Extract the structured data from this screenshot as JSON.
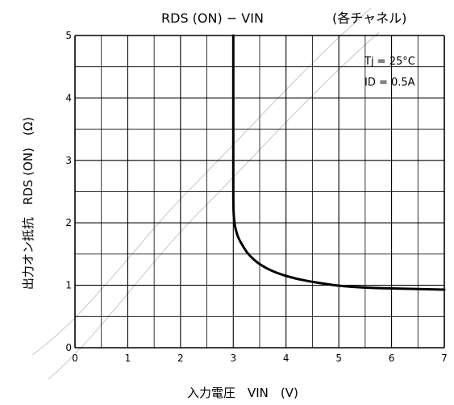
{
  "chart_data": {
    "type": "line",
    "title": "RDS (ON)  −  VIN",
    "subtitle": "(各チャネル)",
    "conditions": [
      "Tj = 25°C",
      "ID = 0.5A"
    ],
    "xlabel": "入力電圧　VIN　(V)",
    "ylabel": "出力オン抵抗　RDS (ON)　(Ω)",
    "xlim": [
      0,
      7
    ],
    "ylim": [
      0,
      5
    ],
    "x_ticks": [
      "0",
      "1",
      "2",
      "3",
      "4",
      "5",
      "6",
      "7"
    ],
    "y_ticks": [
      "0",
      "1",
      "2",
      "3",
      "4",
      "5"
    ],
    "grid": true,
    "series": [
      {
        "x": [
          3.0,
          3.0,
          3.0,
          3.01,
          3.03,
          3.06,
          3.1,
          3.2,
          3.3,
          3.5,
          3.8,
          4.2,
          4.6,
          5.0,
          5.5,
          6.0,
          6.5,
          7.0
        ],
        "y": [
          5.0,
          3.0,
          2.3,
          2.1,
          1.95,
          1.85,
          1.75,
          1.6,
          1.48,
          1.33,
          1.2,
          1.1,
          1.04,
          0.99,
          0.96,
          0.95,
          0.94,
          0.93
        ]
      }
    ]
  },
  "colors": {
    "line": "#000000",
    "grid": "#000000",
    "background": "#ffffff"
  }
}
